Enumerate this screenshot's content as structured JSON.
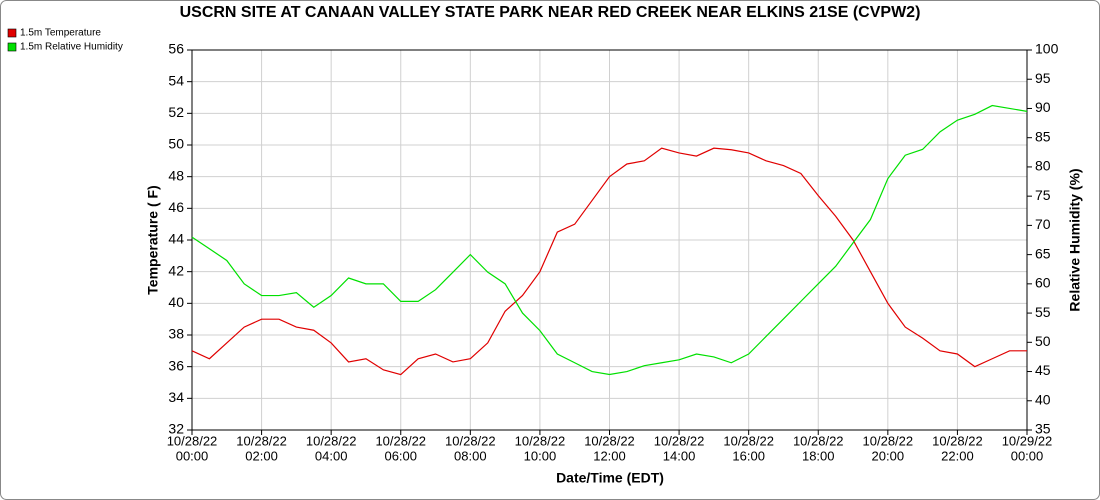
{
  "chart_data": {
    "type": "line",
    "title": "USCRN SITE AT CANAAN VALLEY STATE PARK NEAR RED CREEK NEAR ELKINS 21SE (CVPW2)",
    "xlabel": "Date/Time (EDT)",
    "ylabel": "Temperature ( F)",
    "y2label": "Relative Humidity (%)",
    "x": [
      "10/28/22 00:00",
      "10/28/22 00:30",
      "10/28/22 01:00",
      "10/28/22 01:30",
      "10/28/22 02:00",
      "10/28/22 02:30",
      "10/28/22 03:00",
      "10/28/22 03:30",
      "10/28/22 04:00",
      "10/28/22 04:30",
      "10/28/22 05:00",
      "10/28/22 05:30",
      "10/28/22 06:00",
      "10/28/22 06:30",
      "10/28/22 07:00",
      "10/28/22 07:30",
      "10/28/22 08:00",
      "10/28/22 08:30",
      "10/28/22 09:00",
      "10/28/22 09:30",
      "10/28/22 10:00",
      "10/28/22 10:30",
      "10/28/22 11:00",
      "10/28/22 11:30",
      "10/28/22 12:00",
      "10/28/22 12:30",
      "10/28/22 13:00",
      "10/28/22 13:30",
      "10/28/22 14:00",
      "10/28/22 14:30",
      "10/28/22 15:00",
      "10/28/22 15:30",
      "10/28/22 16:00",
      "10/28/22 16:30",
      "10/28/22 17:00",
      "10/28/22 17:30",
      "10/28/22 18:00",
      "10/28/22 18:30",
      "10/28/22 19:00",
      "10/28/22 19:30",
      "10/28/22 20:00",
      "10/28/22 20:30",
      "10/28/22 21:00",
      "10/28/22 21:30",
      "10/28/22 22:00",
      "10/28/22 22:30",
      "10/28/22 23:00",
      "10/28/22 23:30",
      "10/29/22 00:00"
    ],
    "series": [
      {
        "name": "1.5m Temperature",
        "color": "#e00000",
        "values": [
          37.0,
          36.5,
          37.5,
          38.5,
          39.0,
          39.0,
          38.5,
          38.3,
          37.5,
          36.3,
          36.5,
          35.8,
          35.5,
          36.5,
          36.8,
          36.3,
          36.5,
          37.5,
          39.5,
          40.5,
          42.0,
          44.5,
          45.0,
          46.5,
          48.0,
          48.8,
          49.0,
          49.8,
          49.5,
          49.3,
          49.8,
          49.7,
          49.5,
          49.0,
          48.7,
          48.2,
          46.8,
          45.5,
          44.0,
          42.0,
          40.0,
          38.5,
          37.8,
          37.0,
          36.8,
          36.0,
          36.5,
          37.0,
          37.0
        ]
      },
      {
        "name": "1.5m Relative Humidity",
        "color": "#00e000",
        "axis": "y2",
        "values": [
          68,
          66,
          64,
          60,
          58,
          58,
          58.5,
          56,
          58,
          61,
          60,
          60,
          57,
          57,
          59,
          62,
          65,
          62,
          60,
          55,
          52,
          48,
          46.5,
          45,
          44.5,
          45,
          46,
          46.5,
          47,
          48,
          47.5,
          46.5,
          48,
          51,
          54,
          57,
          60,
          63,
          67,
          71,
          78,
          82,
          83,
          86,
          88,
          89,
          90.5,
          90,
          89.5
        ]
      }
    ],
    "xlim": [
      "10/28/22 00:00",
      "10/29/22 00:00"
    ],
    "xticks": [
      {
        "value": "10/28/22 00:00",
        "label": [
          "10/28/22",
          "00:00"
        ]
      },
      {
        "value": "10/28/22 02:00",
        "label": [
          "10/28/22",
          "02:00"
        ]
      },
      {
        "value": "10/28/22 04:00",
        "label": [
          "10/28/22",
          "04:00"
        ]
      },
      {
        "value": "10/28/22 06:00",
        "label": [
          "10/28/22",
          "06:00"
        ]
      },
      {
        "value": "10/28/22 08:00",
        "label": [
          "10/28/22",
          "08:00"
        ]
      },
      {
        "value": "10/28/22 10:00",
        "label": [
          "10/28/22",
          "10:00"
        ]
      },
      {
        "value": "10/28/22 12:00",
        "label": [
          "10/28/22",
          "12:00"
        ]
      },
      {
        "value": "10/28/22 14:00",
        "label": [
          "10/28/22",
          "14:00"
        ]
      },
      {
        "value": "10/28/22 16:00",
        "label": [
          "10/28/22",
          "16:00"
        ]
      },
      {
        "value": "10/28/22 18:00",
        "label": [
          "10/28/22",
          "18:00"
        ]
      },
      {
        "value": "10/28/22 20:00",
        "label": [
          "10/28/22",
          "20:00"
        ]
      },
      {
        "value": "10/28/22 22:00",
        "label": [
          "10/28/22",
          "22:00"
        ]
      },
      {
        "value": "10/29/22 00:00",
        "label": [
          "10/29/22",
          "00:00"
        ]
      }
    ],
    "ylim": [
      32,
      56
    ],
    "yticks": [
      32,
      34,
      36,
      38,
      40,
      42,
      44,
      46,
      48,
      50,
      52,
      54,
      56
    ],
    "y2lim": [
      35,
      100
    ],
    "y2ticks": [
      35,
      40,
      45,
      50,
      55,
      60,
      65,
      70,
      75,
      80,
      85,
      90,
      95,
      100
    ],
    "grid": true,
    "legend": "top-left"
  }
}
